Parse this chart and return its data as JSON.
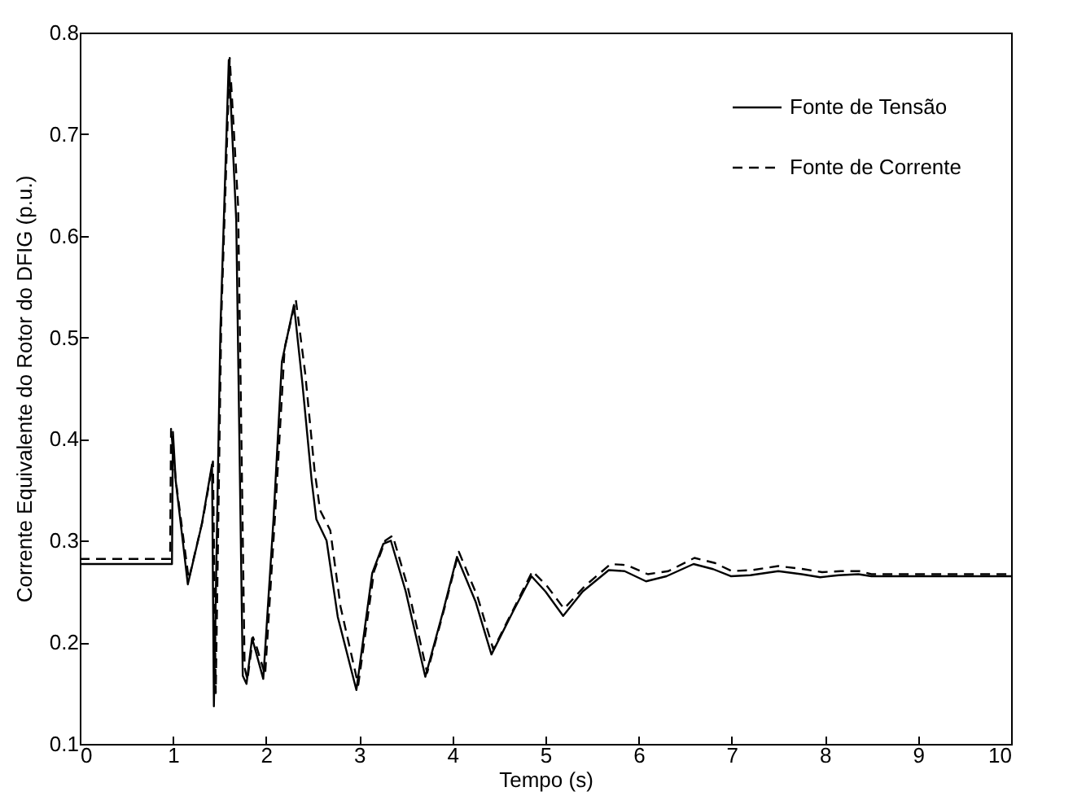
{
  "chart_data": {
    "type": "line",
    "xlabel": "Tempo (s)",
    "ylabel": "Corrente Equivalente do Rotor do  DFIG (p.u.)",
    "xlim": [
      0,
      10
    ],
    "xticks": [
      0,
      1,
      2,
      3,
      4,
      5,
      6,
      7,
      8,
      9,
      10
    ],
    "ylim": [
      0.1,
      0.8
    ],
    "yticks": [
      0.1,
      0.2,
      0.3,
      0.4,
      0.5,
      0.6,
      0.7,
      0.8
    ],
    "grid": false,
    "legend": "top right",
    "series": [
      {
        "name": "Fonte de Tensão",
        "color": "#000000",
        "line_style": "solid",
        "x": [
          0,
          0.99,
          1.0,
          1.03,
          1.16,
          1.31,
          1.42,
          1.44,
          1.51,
          1.6,
          1.68,
          1.75,
          1.79,
          1.85,
          1.89,
          1.97,
          2.08,
          2.17,
          2.3,
          2.39,
          2.49,
          2.54,
          2.65,
          2.77,
          2.97,
          3.14,
          3.26,
          3.34,
          3.5,
          3.71,
          3.9,
          4.05,
          4.25,
          4.42,
          4.65,
          4.85,
          5.0,
          5.19,
          5.4,
          5.68,
          5.85,
          6.08,
          6.3,
          6.59,
          6.8,
          6.99,
          7.2,
          7.5,
          7.75,
          7.95,
          8.15,
          8.36,
          8.5,
          10
        ],
        "values": [
          0.277,
          0.277,
          0.407,
          0.359,
          0.257,
          0.316,
          0.375,
          0.137,
          0.508,
          0.773,
          0.615,
          0.167,
          0.159,
          0.204,
          0.191,
          0.164,
          0.321,
          0.476,
          0.532,
          0.455,
          0.359,
          0.321,
          0.3,
          0.225,
          0.153,
          0.268,
          0.297,
          0.3,
          0.25,
          0.166,
          0.23,
          0.284,
          0.24,
          0.188,
          0.23,
          0.265,
          0.25,
          0.226,
          0.25,
          0.271,
          0.27,
          0.26,
          0.265,
          0.277,
          0.272,
          0.265,
          0.266,
          0.27,
          0.267,
          0.264,
          0.266,
          0.267,
          0.265,
          0.265
        ]
      },
      {
        "name": "Fonte de Corrente",
        "color": "#000000",
        "line_style": "dashed",
        "x": [
          0,
          0.97,
          0.98,
          1.03,
          1.17,
          1.32,
          1.43,
          1.46,
          1.52,
          1.61,
          1.7,
          1.77,
          1.8,
          1.86,
          1.9,
          1.99,
          2.1,
          2.2,
          2.32,
          2.42,
          2.52,
          2.58,
          2.69,
          2.8,
          2.99,
          3.16,
          3.28,
          3.36,
          3.52,
          3.73,
          3.92,
          4.07,
          4.27,
          4.44,
          4.67,
          4.86,
          5.02,
          5.2,
          5.42,
          5.7,
          5.87,
          6.1,
          6.32,
          6.6,
          6.82,
          7.0,
          7.22,
          7.5,
          7.77,
          7.97,
          8.17,
          8.37,
          8.5,
          10
        ],
        "values": [
          0.282,
          0.282,
          0.41,
          0.36,
          0.262,
          0.32,
          0.378,
          0.15,
          0.52,
          0.775,
          0.63,
          0.175,
          0.163,
          0.205,
          0.195,
          0.168,
          0.33,
          0.49,
          0.537,
          0.465,
          0.37,
          0.33,
          0.31,
          0.235,
          0.158,
          0.27,
          0.3,
          0.305,
          0.255,
          0.17,
          0.235,
          0.289,
          0.245,
          0.193,
          0.235,
          0.27,
          0.255,
          0.233,
          0.255,
          0.277,
          0.276,
          0.267,
          0.27,
          0.283,
          0.278,
          0.27,
          0.271,
          0.275,
          0.272,
          0.269,
          0.27,
          0.27,
          0.267,
          0.267
        ]
      }
    ]
  }
}
